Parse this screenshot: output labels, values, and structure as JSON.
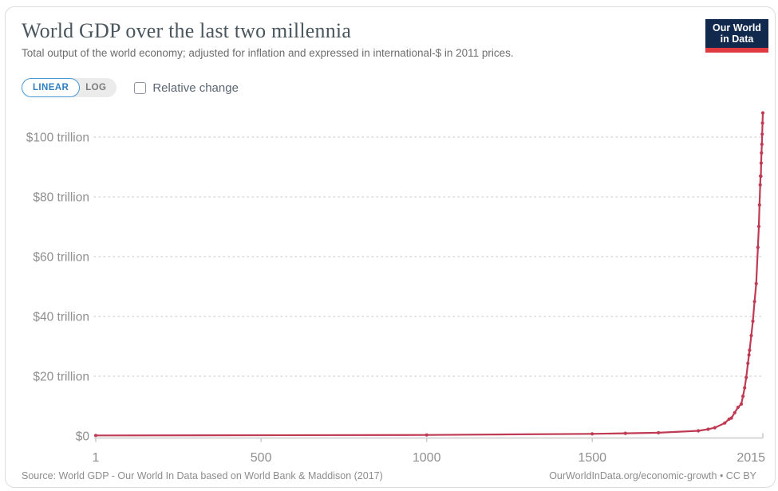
{
  "header": {
    "title": "World GDP over the last two millennia",
    "subtitle": "Total output of the world economy; adjusted for inflation and expressed in international-$ in 2011 prices."
  },
  "logo": {
    "line1": "Our World",
    "line2": "in Data",
    "bg_color": "#12294e",
    "stripe_color": "#e0393f"
  },
  "controls": {
    "linear_label": "LINEAR",
    "log_label": "LOG",
    "selected_scale": "LINEAR",
    "relative_change_label": "Relative change",
    "relative_change_checked": false,
    "accent_blue": "#2f7fc1"
  },
  "chart_data": {
    "type": "line",
    "title": "World GDP over the last two millennia",
    "ylabel": "",
    "xlabel": "",
    "unit": "trillion international-$ (2011 prices)",
    "xlim": [
      1,
      2015
    ],
    "ylim": [
      0,
      112
    ],
    "grid": "horizontal-dotted",
    "line_color": "#bf3b54",
    "x_ticks": [
      {
        "value": 1,
        "label": "1"
      },
      {
        "value": 500,
        "label": "500"
      },
      {
        "value": 1000,
        "label": "1000"
      },
      {
        "value": 1500,
        "label": "1500"
      },
      {
        "value": 2015,
        "label": "2015"
      }
    ],
    "y_ticks": [
      {
        "value": 0,
        "label": "$0"
      },
      {
        "value": 20,
        "label": "$20 trillion"
      },
      {
        "value": 40,
        "label": "$40 trillion"
      },
      {
        "value": 60,
        "label": "$60 trillion"
      },
      {
        "value": 80,
        "label": "$80 trillion"
      },
      {
        "value": 100,
        "label": "$100 trillion"
      }
    ],
    "series": [
      {
        "name": "World GDP",
        "points": [
          [
            1,
            0.18
          ],
          [
            1000,
            0.35
          ],
          [
            1500,
            0.71
          ],
          [
            1600,
            0.91
          ],
          [
            1700,
            1.1
          ],
          [
            1820,
            1.72
          ],
          [
            1850,
            2.26
          ],
          [
            1870,
            2.77
          ],
          [
            1900,
            4.34
          ],
          [
            1913,
            5.66
          ],
          [
            1920,
            6.0
          ],
          [
            1930,
            7.8
          ],
          [
            1940,
            9.6
          ],
          [
            1950,
            10.7
          ],
          [
            1955,
            13.3
          ],
          [
            1960,
            16.1
          ],
          [
            1965,
            19.6
          ],
          [
            1970,
            24.3
          ],
          [
            1973,
            27.1
          ],
          [
            1975,
            28.7
          ],
          [
            1980,
            33.6
          ],
          [
            1985,
            38.4
          ],
          [
            1990,
            45.0
          ],
          [
            1995,
            51.0
          ],
          [
            2000,
            63.1
          ],
          [
            2003,
            70.1
          ],
          [
            2005,
            77.3
          ],
          [
            2007,
            84.0
          ],
          [
            2008,
            87.0
          ],
          [
            2009,
            86.9
          ],
          [
            2010,
            91.3
          ],
          [
            2011,
            94.7
          ],
          [
            2012,
            97.6
          ],
          [
            2013,
            101.0
          ],
          [
            2014,
            104.7
          ],
          [
            2015,
            108.1
          ]
        ]
      }
    ]
  },
  "footer": {
    "source": "Source: World GDP - Our World In Data based on World Bank & Maddison (2017)",
    "link": "OurWorldInData.org/economic-growth • CC BY"
  }
}
